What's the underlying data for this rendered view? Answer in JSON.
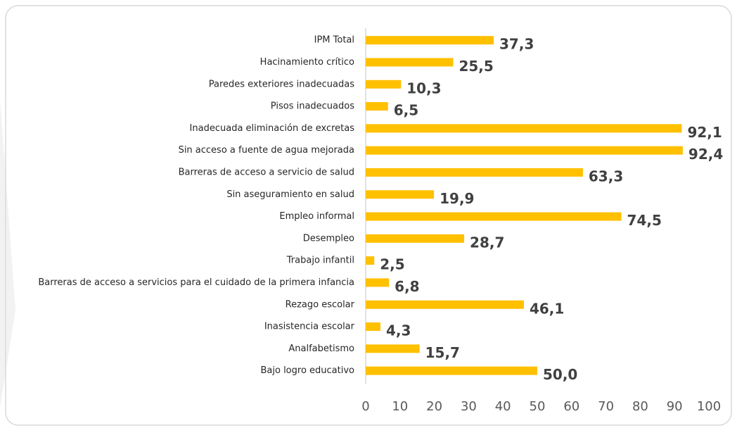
{
  "chart_data": {
    "type": "barh",
    "categories": [
      "IPM Total",
      "Hacinamiento crítico",
      "Paredes exteriores inadecuadas",
      "Pisos inadecuados",
      "Inadecuada eliminación de excretas",
      "Sin acceso a fuente de agua mejorada",
      "Barreras de acceso a servicio de salud",
      "Sin aseguramiento en salud",
      "Empleo informal",
      "Desempleo",
      "Trabajo infantil",
      "Barreras de acceso a servicios para el cuidado de la primera infancia",
      "Rezago escolar",
      "Inasistencia escolar",
      "Analfabetismo",
      "Bajo logro educativo"
    ],
    "values": [
      37.3,
      25.5,
      10.3,
      6.5,
      92.1,
      92.4,
      63.3,
      19.9,
      74.5,
      28.7,
      2.5,
      6.8,
      46.1,
      4.3,
      15.7,
      50.0
    ],
    "value_labels": [
      "37,3",
      "25,5",
      "10,3",
      "6,5",
      "92,1",
      "92,4",
      "63,3",
      "19,9",
      "74,5",
      "28,7",
      "2,5",
      "6,8",
      "46,1",
      "4,3",
      "15,7",
      "50,0"
    ],
    "color": "#ffc000",
    "xlim": [
      0,
      100
    ],
    "xticks": [
      0,
      10,
      20,
      30,
      40,
      50,
      60,
      70,
      80,
      90,
      100
    ],
    "grid": false
  }
}
